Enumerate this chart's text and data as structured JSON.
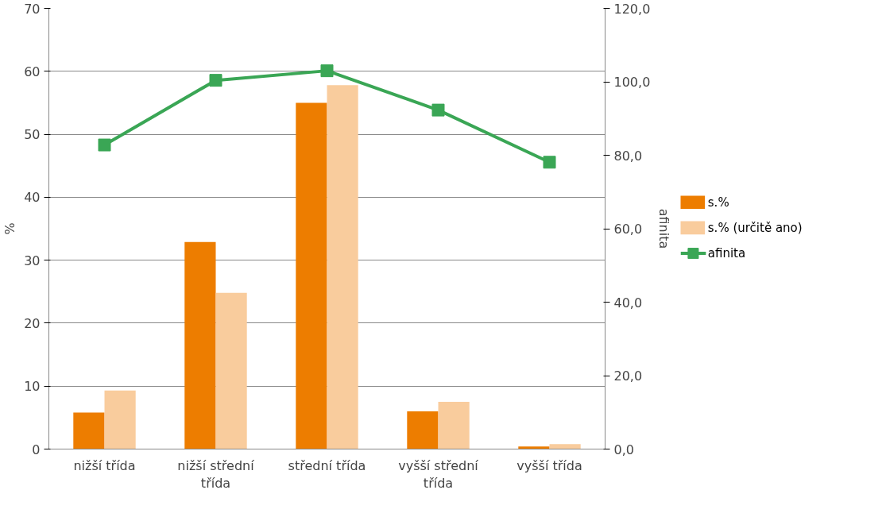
{
  "chart_data": {
    "type": "bar",
    "ylabel": "%",
    "y2label": "afinita",
    "categories": [
      "nižší třída",
      "nižší střední třída",
      "střední třída",
      "vyšší střední třída",
      "vyšší třída"
    ],
    "series": [
      {
        "name": "s.%",
        "color": "#ed7d00",
        "values": [
          5.8,
          32.9,
          55.0,
          6.0,
          0.4
        ]
      },
      {
        "name": "s.% (určitě ano)",
        "color": "#f9cc9d",
        "values": [
          9.3,
          24.8,
          57.8,
          7.5,
          0.8
        ]
      },
      {
        "name": "afinita",
        "type": "line",
        "axis": "y2",
        "color": "#3aa655",
        "marker": "square",
        "values": [
          82.8,
          100.4,
          103.0,
          92.3,
          78.1
        ]
      }
    ],
    "ylim": [
      0,
      70
    ],
    "yticks": [
      0,
      10,
      20,
      30,
      40,
      50,
      60,
      70
    ],
    "y2lim": [
      0,
      120
    ],
    "y2ticks": [
      {
        "value": 0,
        "label": "0,0"
      },
      {
        "value": 20,
        "label": "20,0"
      },
      {
        "value": 40,
        "label": "40,0"
      },
      {
        "value": 60,
        "label": "60,0"
      },
      {
        "value": 80,
        "label": "80,0"
      },
      {
        "value": 100,
        "label": "100,0"
      },
      {
        "value": 120,
        "label": "120,0"
      }
    ],
    "grid": "y",
    "legend": "right"
  }
}
